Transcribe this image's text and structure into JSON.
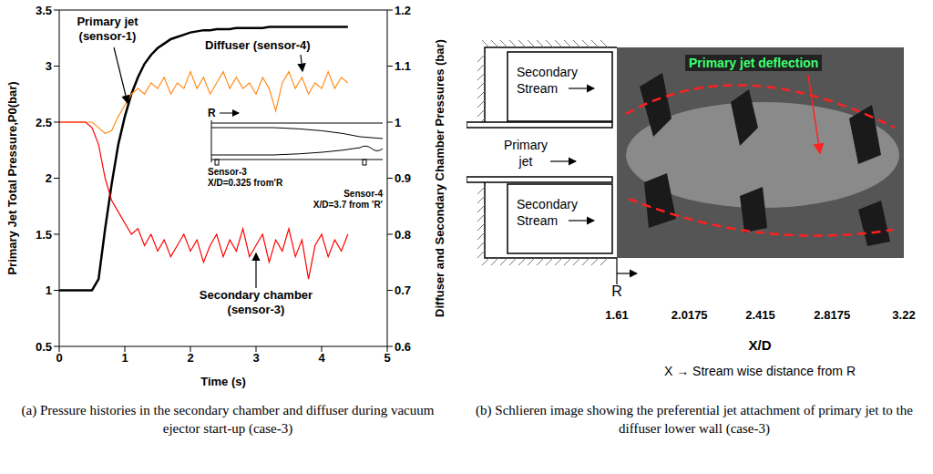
{
  "chart_data": {
    "type": "line",
    "x_label": "Time (s)",
    "y_label": "Primary Jet Total Pressure,P0(bar)",
    "y2_label": "Diffuser and Secondary Chamber Pressures (bar)",
    "x": [
      0,
      0.1,
      0.2,
      0.3,
      0.4,
      0.5,
      0.6,
      0.7,
      0.8,
      0.9,
      1,
      1.1,
      1.2,
      1.3,
      1.4,
      1.5,
      1.6,
      1.7,
      1.8,
      1.9,
      2,
      2.1,
      2.2,
      2.3,
      2.4,
      2.5,
      2.6,
      2.7,
      2.8,
      2.9,
      3,
      3.1,
      3.2,
      3.3,
      3.4,
      3.5,
      3.6,
      3.7,
      3.8,
      3.9,
      4,
      4.1,
      4.2,
      4.3,
      4.4
    ],
    "xlim": [
      0,
      5
    ],
    "xticks": [
      0,
      1,
      2,
      3,
      4,
      5
    ],
    "ylim": [
      0.5,
      3.5
    ],
    "yticks": [
      0.5,
      1,
      1.5,
      2,
      2.5,
      3,
      3.5
    ],
    "y2lim": [
      0.6,
      1.2
    ],
    "y2ticks": [
      0.6,
      0.7,
      0.8,
      0.9,
      1,
      1.1,
      1.2
    ],
    "series": [
      {
        "name": "Primary jet (sensor-1)",
        "color": "#000000",
        "values": [
          1,
          1,
          1,
          1,
          1,
          1,
          1.1,
          1.55,
          1.95,
          2.3,
          2.55,
          2.75,
          2.9,
          3.02,
          3.1,
          3.16,
          3.2,
          3.24,
          3.26,
          3.28,
          3.3,
          3.31,
          3.32,
          3.32,
          3.33,
          3.33,
          3.33,
          3.34,
          3.34,
          3.34,
          3.34,
          3.34,
          3.35,
          3.35,
          3.35,
          3.35,
          3.35,
          3.35,
          3.35,
          3.35,
          3.35,
          3.35,
          3.35,
          3.35,
          3.35
        ]
      },
      {
        "name": "Diffuser (sensor-4)",
        "color": "#ff8c1a",
        "axis": "y2",
        "values": [
          1,
          1,
          1,
          1,
          1,
          1,
          0.99,
          0.98,
          0.985,
          1.01,
          1.03,
          1.05,
          1.06,
          1.05,
          1.07,
          1.06,
          1.08,
          1.05,
          1.07,
          1.06,
          1.09,
          1.06,
          1.08,
          1.05,
          1.07,
          1.09,
          1.06,
          1.08,
          1.06,
          1.07,
          1.05,
          1.08,
          1.06,
          1.02,
          1.07,
          1.09,
          1.06,
          1.08,
          1.05,
          1.07,
          1.06,
          1.09,
          1.06,
          1.08,
          1.07
        ]
      },
      {
        "name": "Secondary chamber (sensor-3)",
        "color": "#ff0000",
        "axis": "y2",
        "values": [
          1,
          1,
          1,
          1,
          1,
          0.99,
          0.96,
          0.9,
          0.86,
          0.84,
          0.82,
          0.8,
          0.81,
          0.78,
          0.8,
          0.77,
          0.79,
          0.76,
          0.78,
          0.8,
          0.77,
          0.79,
          0.75,
          0.78,
          0.8,
          0.76,
          0.79,
          0.77,
          0.81,
          0.76,
          0.78,
          0.8,
          0.75,
          0.79,
          0.77,
          0.81,
          0.76,
          0.79,
          0.72,
          0.78,
          0.8,
          0.76,
          0.79,
          0.77,
          0.8
        ]
      }
    ],
    "annotations": [
      "R",
      "Sensor-3",
      "X/D=0.325 from'R",
      "Sensor-4",
      "X/D=3.7 from 'R'"
    ],
    "caption": "(a) Pressure histories in the secondary chamber and diffuser during vacuum ejector start-up (case-3)"
  },
  "image": {
    "secondary_stream": "Secondary Stream",
    "primary_jet": "Primary jet",
    "deflection": "Primary jet deflection",
    "reference": "R",
    "xticks": [
      1.61,
      2.0175,
      2.415,
      2.8175,
      3.22
    ],
    "x_label": "X/D",
    "x_definition": "X → Stream wise distance from R",
    "caption": "(b) Schlieren image showing the preferential jet attachment of primary jet to the diffuser lower wall (case-3)"
  }
}
